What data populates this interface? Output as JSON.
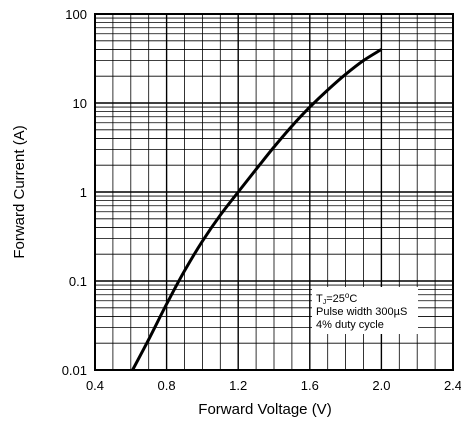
{
  "chart_data": {
    "type": "line",
    "title": "",
    "xlabel": "Forward Voltage (V)",
    "ylabel": "Forward Current (A)",
    "x_scale": "linear",
    "y_scale": "log",
    "xlim": [
      0.4,
      2.4
    ],
    "ylim": [
      0.01,
      100
    ],
    "x_ticks": [
      0.4,
      0.8,
      1.2,
      1.6,
      2.0,
      2.4
    ],
    "x_tick_labels": [
      "0.4",
      "0.8",
      "1.2",
      "1.6",
      "2.0",
      "2.4"
    ],
    "y_ticks": [
      0.01,
      0.1,
      1,
      10,
      100
    ],
    "y_tick_labels": [
      "0.01",
      "0.1",
      "1",
      "10",
      "100"
    ],
    "grid": true,
    "series": [
      {
        "color": "#000000",
        "points": [
          [
            0.61,
            0.01
          ],
          [
            0.7,
            0.022
          ],
          [
            0.8,
            0.055
          ],
          [
            0.9,
            0.13
          ],
          [
            1.0,
            0.28
          ],
          [
            1.1,
            0.55
          ],
          [
            1.2,
            1.0
          ],
          [
            1.3,
            1.8
          ],
          [
            1.4,
            3.2
          ],
          [
            1.5,
            5.5
          ],
          [
            1.6,
            9.0
          ],
          [
            1.7,
            14
          ],
          [
            1.8,
            21
          ],
          [
            1.9,
            30
          ],
          [
            2.0,
            40
          ]
        ]
      }
    ],
    "annotation": {
      "lines": [
        "TJ=25°C",
        "Pulse width 300µS",
        "4% duty cycle"
      ],
      "placement": "bottom-right"
    }
  }
}
